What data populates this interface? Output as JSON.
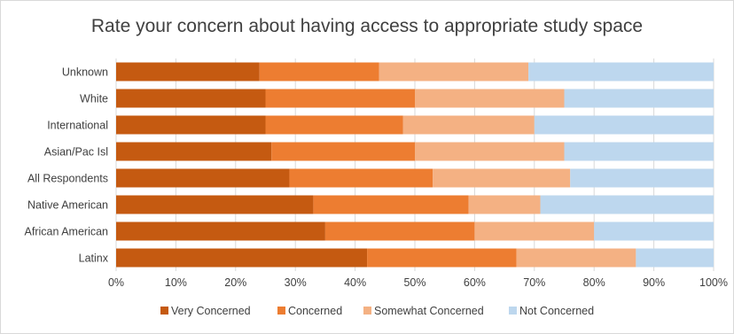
{
  "chart_data": {
    "type": "bar",
    "orientation": "horizontal",
    "stacked": "percent",
    "title": "Rate your concern about having access to appropriate study space",
    "categories": [
      "Unknown",
      "White",
      "International",
      "Asian/Pac Isl",
      "All Respondents",
      "Native American",
      "African American",
      "Latinx"
    ],
    "series": [
      {
        "name": "Very Concerned",
        "color": "#c55a11",
        "values": [
          24,
          25,
          25,
          26,
          29,
          33,
          35,
          42
        ]
      },
      {
        "name": "Concerned",
        "color": "#ed7d31",
        "values": [
          20,
          25,
          23,
          24,
          24,
          26,
          25,
          25
        ]
      },
      {
        "name": "Somewhat Concerned",
        "color": "#f4b183",
        "values": [
          25,
          25,
          22,
          25,
          23,
          12,
          20,
          20
        ]
      },
      {
        "name": "Not Concerned",
        "color": "#bdd7ee",
        "values": [
          31,
          25,
          30,
          25,
          24,
          29,
          20,
          13
        ]
      }
    ],
    "x_ticks": [
      "0%",
      "10%",
      "20%",
      "30%",
      "40%",
      "50%",
      "60%",
      "70%",
      "80%",
      "90%",
      "100%"
    ],
    "xlim": [
      0,
      100
    ],
    "grid": true,
    "legend_position": "bottom"
  }
}
